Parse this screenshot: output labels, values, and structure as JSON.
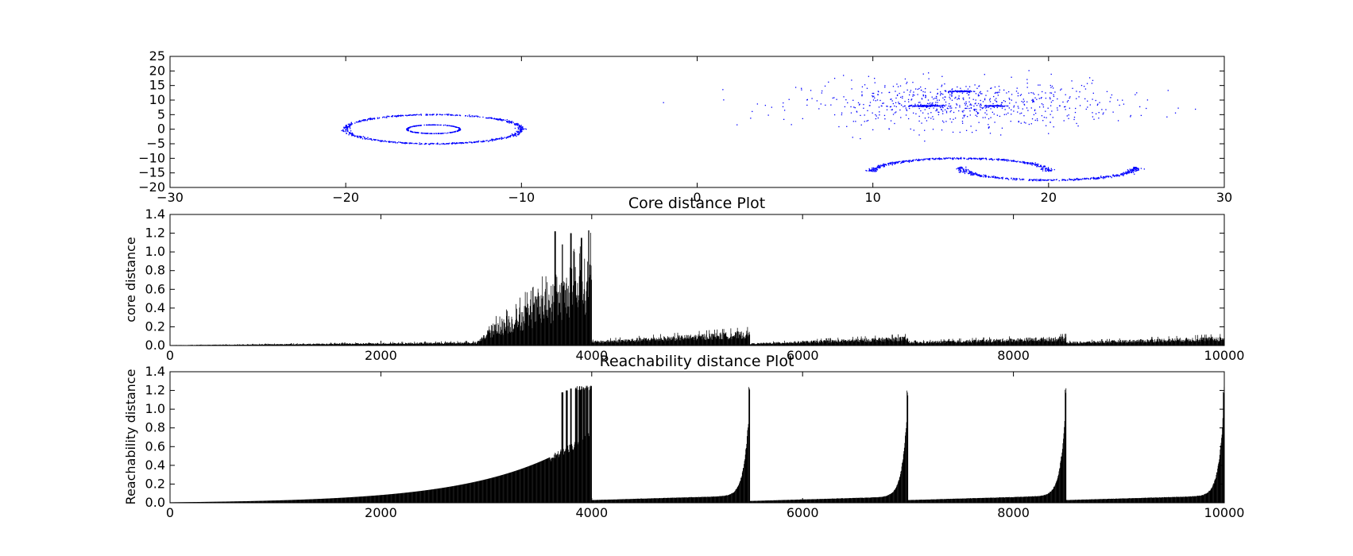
{
  "chart_data": [
    {
      "type": "scatter",
      "title": "",
      "xlabel": "",
      "ylabel": "",
      "xlim": [
        -30,
        30
      ],
      "ylim": [
        -20,
        25
      ],
      "xticks": [
        -30,
        -20,
        -10,
        0,
        10,
        20,
        30
      ],
      "yticks": [
        -20,
        -15,
        -10,
        -5,
        0,
        5,
        10,
        15,
        20,
        25
      ],
      "xtick_labels": [
        "−30",
        "−20",
        "−10",
        "0",
        "10",
        "20",
        "30"
      ],
      "ytick_labels": [
        "−20",
        "−15",
        "−10",
        "−5",
        "0",
        "5",
        "10",
        "15",
        "20",
        "25"
      ],
      "color": "#0000ff",
      "clusters": [
        {
          "shape": "ring",
          "center": [
            -15,
            0
          ],
          "rx": 5,
          "ry": 5,
          "count": 700
        },
        {
          "shape": "ring",
          "center": [
            -15,
            0
          ],
          "rx": 1.5,
          "ry": 1.5,
          "count": 260
        },
        {
          "shape": "gaussian-blob",
          "center": [
            15,
            8.5
          ],
          "sx": 4.5,
          "sy": 4,
          "count": 700
        },
        {
          "shape": "dense-blob",
          "center": [
            13,
            8
          ],
          "sx": 0.5,
          "sy": 0.15,
          "count": 140
        },
        {
          "shape": "dense-blob",
          "center": [
            15,
            13
          ],
          "sx": 0.35,
          "sy": 0.12,
          "count": 90
        },
        {
          "shape": "dense-blob",
          "center": [
            17,
            8
          ],
          "sx": 0.35,
          "sy": 0.1,
          "count": 80
        },
        {
          "shape": "upper-arc",
          "center": [
            15,
            -14.5
          ],
          "rx": 5,
          "ry": 4.5,
          "count": 450
        },
        {
          "shape": "lower-arc",
          "center": [
            20,
            -13
          ],
          "rx": 5,
          "ry": 4.5,
          "count": 450
        }
      ]
    },
    {
      "type": "bar",
      "title": "Core distance Plot",
      "xlabel": "",
      "ylabel": "core distance",
      "xlim": [
        0,
        10000
      ],
      "ylim": [
        0,
        1.4
      ],
      "xticks": [
        0,
        2000,
        4000,
        6000,
        8000,
        10000
      ],
      "yticks": [
        0,
        0.2,
        0.4,
        0.6,
        0.8,
        1.0,
        1.2,
        1.4
      ],
      "xtick_labels": [
        "0",
        "2000",
        "4000",
        "6000",
        "8000",
        "10000"
      ],
      "ytick_labels": [
        "0.0",
        "0.2",
        "0.4",
        "0.6",
        "0.8",
        "1.0",
        "1.2",
        "1.4"
      ],
      "color": "#000000",
      "segments": [
        {
          "x": [
            0,
            2900
          ],
          "low": 0.005,
          "high": 0.04,
          "trend": "linear"
        },
        {
          "x": [
            2900,
            3000
          ],
          "low": 0.03,
          "high": 0.15,
          "trend": "linear"
        },
        {
          "x": [
            3000,
            4000
          ],
          "low": 0.2,
          "high": 1.0,
          "trend": "noisy-rise",
          "peaks": [
            [
              3650,
              1.22
            ],
            [
              3800,
              1.2
            ],
            [
              3970,
              1.23
            ],
            [
              3900,
              1.15
            ],
            [
              3720,
              1.08
            ]
          ]
        },
        {
          "x": [
            4000,
            5500
          ],
          "low": 0.05,
          "high": 0.16,
          "trend": "linear"
        },
        {
          "x": [
            5500,
            7000
          ],
          "low": 0.025,
          "high": 0.1,
          "trend": "linear"
        },
        {
          "x": [
            7000,
            8500
          ],
          "low": 0.04,
          "high": 0.1,
          "trend": "linear"
        },
        {
          "x": [
            8500,
            10000
          ],
          "low": 0.04,
          "high": 0.1,
          "trend": "linear"
        }
      ]
    },
    {
      "type": "bar",
      "title": "Reachability distance Plot",
      "xlabel": "",
      "ylabel": "Reachability distance",
      "xlim": [
        0,
        10000
      ],
      "ylim": [
        0,
        1.4
      ],
      "xticks": [
        0,
        2000,
        4000,
        6000,
        8000,
        10000
      ],
      "yticks": [
        0,
        0.2,
        0.4,
        0.6,
        0.8,
        1.0,
        1.2,
        1.4
      ],
      "xtick_labels": [
        "0",
        "2000",
        "4000",
        "6000",
        "8000",
        "10000"
      ],
      "ytick_labels": [
        "0.0",
        "0.2",
        "0.4",
        "0.6",
        "0.8",
        "1.0",
        "1.2",
        "1.4"
      ],
      "color": "#000000",
      "segments": [
        {
          "x": [
            0,
            4000
          ],
          "start": 0.005,
          "end": 0.75,
          "trend": "exponential",
          "spikes": [
            [
              3720,
              1.18
            ],
            [
              3760,
              1.2
            ],
            [
              3800,
              1.22
            ],
            [
              3850,
              1.23
            ],
            [
              3900,
              1.24
            ],
            [
              3950,
              1.25
            ],
            [
              3990,
              1.25
            ]
          ]
        },
        {
          "x": [
            4000,
            5500
          ],
          "start": 0.03,
          "end": 1.24,
          "trend": "hockey-stick"
        },
        {
          "x": [
            5500,
            7000
          ],
          "start": 0.02,
          "end": 1.24,
          "trend": "hockey-stick"
        },
        {
          "x": [
            7000,
            8500
          ],
          "start": 0.03,
          "end": 1.24,
          "trend": "hockey-stick"
        },
        {
          "x": [
            8500,
            10000
          ],
          "start": 0.03,
          "end": 1.24,
          "trend": "hockey-stick"
        }
      ]
    }
  ]
}
